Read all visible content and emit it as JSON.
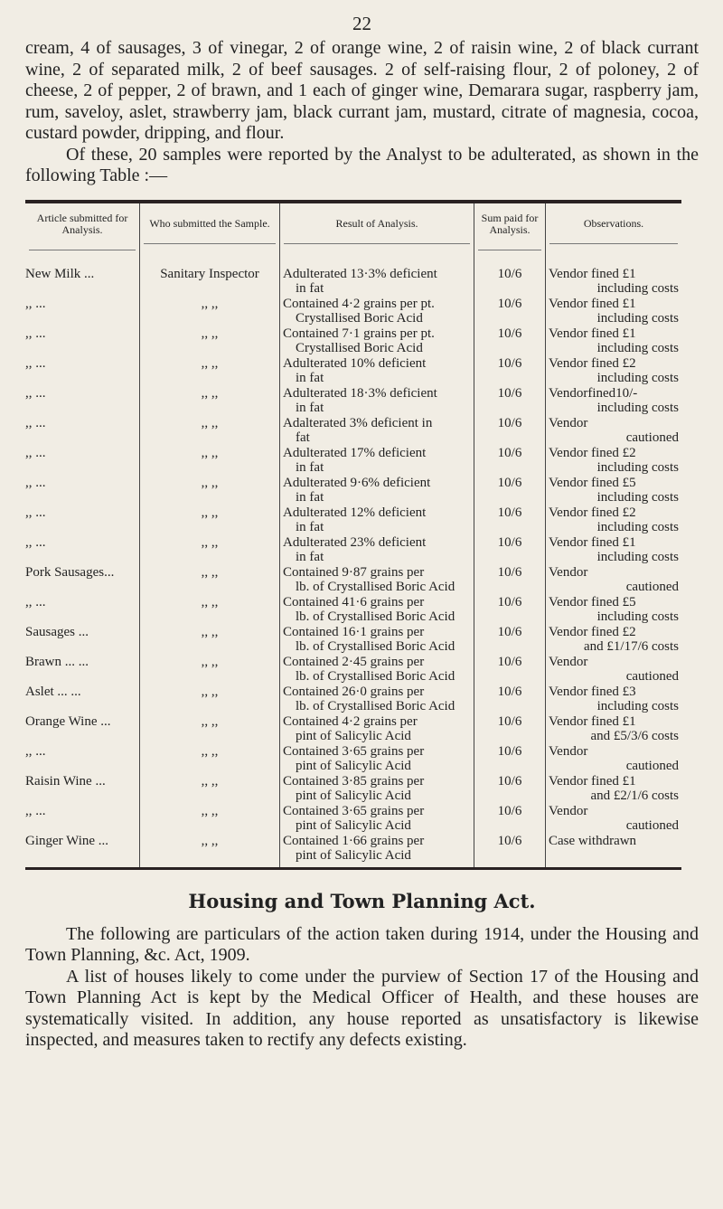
{
  "page_number": "22",
  "intro_paragraphs": [
    "cream, 4 of sausages, 3 of vinegar, 2 of orange wine, 2 of raisin wine, 2 of black currant wine, 2 of separated milk, 2 of beef sausages. 2 of self-raising flour, 2 of poloney, 2 of cheese, 2 of pepper, 2 of brawn, and 1 each of ginger wine, Demarara sugar, raspberry jam, rum, saveloy, aslet, strawberry jam, black currant jam, mustard, citrate of magnesia, cocoa, custard powder, dripping, and flour.",
    "Of these, 20 samples were reported by the Analyst to be adulterated, as shown in the following Table :—"
  ],
  "table": {
    "headers": [
      "Article submitted for Analysis.",
      "Who submitted the Sample.",
      "Result of Analysis.",
      "Sum paid for Analysis.",
      "Observations."
    ],
    "rows": [
      {
        "article": "New Milk ...",
        "who": "Sanitary Inspector",
        "result1": "Adulterated 13·3% deficient",
        "result2": "in fat",
        "sum": "10/6",
        "obs1": "Vendor fined £1",
        "obs2": "including costs"
      },
      {
        "article": ",, ...",
        "who": ",,  ,,",
        "result1": "Contained 4·2 grains per pt.",
        "result2": "Crystallised Boric Acid",
        "sum": "10/6",
        "obs1": "Vendor fined £1",
        "obs2": "including costs"
      },
      {
        "article": ",, ...",
        "who": ",,  ,,",
        "result1": "Contained 7·1 grains per pt.",
        "result2": "Crystallised Boric Acid",
        "sum": "10/6",
        "obs1": "Vendor fined £1",
        "obs2": "including costs"
      },
      {
        "article": ",, ...",
        "who": ",,  ,,",
        "result1": "Adulterated 10% deficient",
        "result2": "in fat",
        "sum": "10/6",
        "obs1": "Vendor fined £2",
        "obs2": "including costs"
      },
      {
        "article": ",, ...",
        "who": ",,  ,,",
        "result1": "Adulterated 18·3% deficient",
        "result2": "in fat",
        "sum": "10/6",
        "obs1": "Vendorfined10/-",
        "obs2": "including costs"
      },
      {
        "article": ",, ...",
        "who": ",,  ,,",
        "result1": "Adalterated 3% deficient in",
        "result2": "fat",
        "sum": "10/6",
        "obs1": "Vendor",
        "obs2": "cautioned"
      },
      {
        "article": ",, ...",
        "who": ",,  ,,",
        "result1": "Adulterated 17% deficient",
        "result2": "in fat",
        "sum": "10/6",
        "obs1": "Vendor fined £2",
        "obs2": "including costs"
      },
      {
        "article": ",, ...",
        "who": ",,  ,,",
        "result1": "Adulterated 9·6% deficient",
        "result2": "in fat",
        "sum": "10/6",
        "obs1": "Vendor fined £5",
        "obs2": "including costs"
      },
      {
        "article": ",, ...",
        "who": ",,  ,,",
        "result1": "Adulterated 12% deficient",
        "result2": "in fat",
        "sum": "10/6",
        "obs1": "Vendor fined £2",
        "obs2": "including costs"
      },
      {
        "article": ",, ...",
        "who": ",,  ,,",
        "result1": "Adulterated 23% deficient",
        "result2": "in fat",
        "sum": "10/6",
        "obs1": "Vendor fined £1",
        "obs2": "including costs"
      },
      {
        "article": "Pork Sausages...",
        "who": ",,  ,,",
        "result1": "Contained 9·87 grains per",
        "result2": "lb. of Crystallised Boric Acid",
        "sum": "10/6",
        "obs1": "Vendor",
        "obs2": "cautioned"
      },
      {
        "article": ",, ...",
        "who": ",,  ,,",
        "result1": "Contained 41·6 grains per",
        "result2": "lb. of Crystallised Boric Acid",
        "sum": "10/6",
        "obs1": "Vendor fined £5",
        "obs2": "including costs"
      },
      {
        "article": "Sausages ...",
        "who": ",,  ,,",
        "result1": "Contained 16·1 grains per",
        "result2": "lb. of Crystallised Boric Acid",
        "sum": "10/6",
        "obs1": "Vendor fined £2",
        "obs2": "and £1/17/6 costs"
      },
      {
        "article": "Brawn ... ...",
        "who": ",,  ,,",
        "result1": "Contained 2·45 grains per",
        "result2": "lb. of Crystallised Boric Acid",
        "sum": "10/6",
        "obs1": "Vendor",
        "obs2": "cautioned"
      },
      {
        "article": "Aslet ... ...",
        "who": ",,  ,,",
        "result1": "Contained 26·0 grains per",
        "result2": "lb. of Crystallised Boric Acid",
        "sum": "10/6",
        "obs1": "Vendor fined £3",
        "obs2": "including costs"
      },
      {
        "article": "Orange Wine ...",
        "who": ",,  ,,",
        "result1": "Contained 4·2 grains per",
        "result2": "pint of Salicylic Acid",
        "sum": "10/6",
        "obs1": "Vendor fined £1",
        "obs2": "and £5/3/6 costs"
      },
      {
        "article": ",, ...",
        "who": ",,  ,,",
        "result1": "Contained 3·65 grains per",
        "result2": "pint of Salicylic Acid",
        "sum": "10/6",
        "obs1": "Vendor",
        "obs2": "cautioned"
      },
      {
        "article": "Raisin Wine ...",
        "who": ",,  ,,",
        "result1": "Contained 3·85 grains per",
        "result2": "pint of Salicylic Acid",
        "sum": "10/6",
        "obs1": "Vendor fined £1",
        "obs2": "and £2/1/6 costs"
      },
      {
        "article": ",, ...",
        "who": ",,  ,,",
        "result1": "Contained 3·65 grains per",
        "result2": "pint of Salicylic Acid",
        "sum": "10/6",
        "obs1": "Vendor",
        "obs2": "cautioned"
      },
      {
        "article": "Ginger Wine ...",
        "who": ",,  ,,",
        "result1": "Contained 1·66 grains per",
        "result2": "pint of Salicylic Acid",
        "sum": "10/6",
        "obs1": "Case withdrawn",
        "obs2": ""
      }
    ]
  },
  "section_heading": "Housing and Town Planning Act.",
  "closing_paragraphs": [
    "The following are particulars of the action taken during 1914, under the Housing and Town Planning, &c. Act, 1909.",
    "A list of houses likely to come under the purview of Section 17 of the Housing and Town Planning Act is kept by the Medical Officer of Health, and these houses are systematically visited. In addition, any house reported as unsatisfactory is likewise inspected, and measures taken to rectify any defects existing."
  ]
}
